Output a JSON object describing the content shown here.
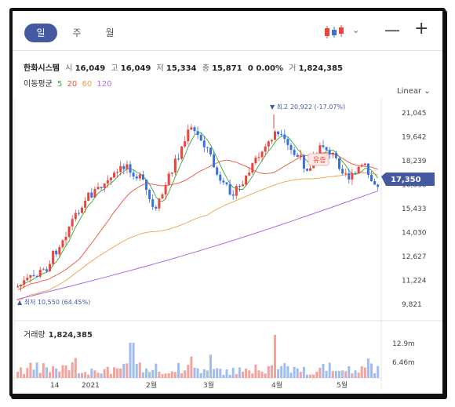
{
  "tabs": [
    {
      "label": "일",
      "active": true
    },
    {
      "label": "주",
      "active": false
    },
    {
      "label": "월",
      "active": false
    }
  ],
  "toolbar": {
    "chart_type_icon": "candlestick-icon",
    "dropdown_icon": "chevron-down-icon",
    "zoom_out": "—",
    "zoom_in": "+"
  },
  "quote": {
    "name": "한화시스템",
    "open_label": "시",
    "open": "16,049",
    "high_label": "고",
    "high": "16,049",
    "low_label": "저",
    "low": "15,334",
    "close_label": "종",
    "close": "15,871",
    "change": "0 0.00%",
    "volume_label": "거",
    "volume": "1,824,385"
  },
  "moving_average": {
    "label": "이동평균",
    "periods": [
      {
        "value": "5",
        "color": "#3aa33a"
      },
      {
        "value": "20",
        "color": "#e8543c"
      },
      {
        "value": "60",
        "color": "#f0a048"
      },
      {
        "value": "120",
        "color": "#a66ee0"
      }
    ]
  },
  "scale_mode": "Linear",
  "chart_data": {
    "type": "candlestick",
    "price_ticks": [
      "21,045",
      "19,642",
      "18,239",
      "16,836",
      "15,433",
      "14,030",
      "12,627",
      "11,224",
      "9,821"
    ],
    "current_price": "17,350",
    "high_annotation": "▼ 최고 20,922 (-17.07%)",
    "low_annotation": "▲ 최저 10,550 (64.45%)",
    "hover_label": "유증",
    "x_labels": [
      "14",
      "2021",
      "2월",
      "3월",
      "4월",
      "5월"
    ],
    "volume_label": "거래량",
    "volume": "1,824,385",
    "volume_ticks": [
      "12.9m",
      "6.46m"
    ],
    "colors": {
      "up": "#e8453c",
      "down": "#3a6fe0",
      "ma5": "#3aa33a",
      "ma20": "#e8543c",
      "ma60": "#f0a048",
      "ma120": "#a66ee0"
    }
  }
}
